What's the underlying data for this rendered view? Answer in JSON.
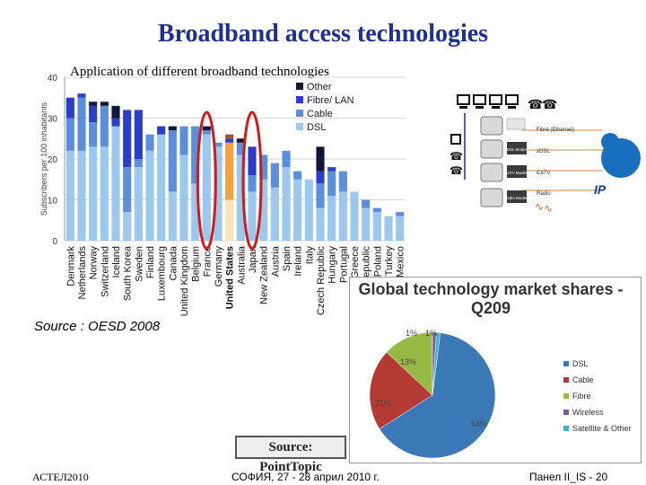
{
  "slide": {
    "title": "Broadband access technologies",
    "subtitle": "Application of different broadband technologies",
    "source": "Source : OESD 2008",
    "footer_left": "АСТЕЛ2010",
    "footer_mid": "СОФИЯ, 27 - 28 април 2010 г.",
    "footer_right": "Панел II_IS - 20",
    "pointtopic": "Source: PointTopic"
  },
  "diagram": {
    "labels": [
      "Fibre (Ethernet)",
      "xDSL",
      "xDSL Modem",
      "CaTV",
      "CaTV Modem",
      "Radio",
      "Radio Modem",
      "IP"
    ]
  },
  "colors": {
    "title": "#1f2f8a",
    "dsl_bar": "#9cc8ee",
    "cable_bar": "#5b8fdc",
    "fibre_bar": "#2a3ec8",
    "other_bar": "#12163a",
    "highlight_orange": "#f7a040",
    "circle": "#d11b1b",
    "pie_dsl": "#3a78b6",
    "pie_cable": "#b53a34",
    "pie_fibre": "#97b843",
    "pie_wireless": "#7a5ba8",
    "pie_satellite": "#3cb0cc"
  },
  "chart_data": [
    {
      "type": "bar",
      "stacked": true,
      "ylabel": "Subscribers per 100 inhabitants",
      "ylim": [
        0,
        40
      ],
      "yticks": [
        0,
        10,
        20,
        30,
        40
      ],
      "categories": [
        "Denmark",
        "Netherlands",
        "Norway",
        "Switzerland",
        "Iceland",
        "South Korea",
        "Sweden",
        "Finland",
        "Luxembourg",
        "Canada",
        "United Kingdom",
        "Belgium",
        "France",
        "Germany",
        "United States",
        "Australia",
        "Japan",
        "New Zealand",
        "Austria",
        "Spain",
        "Ireland",
        "Italy",
        "Czech Republic",
        "Hungary",
        "Portugal",
        "Greece",
        "Republic",
        "Poland",
        "Turkey",
        "Mexico"
      ],
      "highlighted": [
        "France",
        "Japan"
      ],
      "emphasized_category": "United States",
      "legend_position": "top-right",
      "series": [
        {
          "name": "DSL",
          "values": [
            22,
            22,
            23,
            23,
            28,
            7,
            18,
            22,
            26,
            12,
            21,
            14,
            26,
            23,
            10,
            21,
            12,
            15,
            13,
            18,
            15,
            15,
            8,
            11,
            12,
            12,
            8,
            7,
            6,
            6
          ]
        },
        {
          "name": "Cable",
          "values": [
            8,
            13,
            6,
            10,
            0,
            11,
            2,
            4,
            0,
            15,
            7,
            14,
            1,
            1,
            14,
            3,
            4,
            6,
            6,
            4,
            2,
            0,
            6,
            6,
            5,
            0,
            2,
            1,
            0,
            1
          ]
        },
        {
          "name": "Fibre/ LAN",
          "values": [
            5,
            1,
            4,
            0,
            2,
            14,
            12,
            0,
            2,
            0,
            0,
            0,
            0,
            0,
            1,
            0,
            7,
            0,
            0,
            0,
            0,
            0,
            3,
            1,
            0,
            0,
            0,
            0,
            0,
            0
          ]
        },
        {
          "name": "Other",
          "values": [
            0,
            0,
            1,
            1,
            3,
            0,
            0,
            0,
            0,
            1,
            0,
            0,
            1,
            0,
            1,
            1,
            0,
            0,
            0,
            0,
            0,
            0,
            6,
            0,
            0,
            0,
            0,
            0,
            0,
            0
          ]
        }
      ]
    },
    {
      "type": "pie",
      "title": "Global technology market shares - Q209",
      "categories": [
        "DSL",
        "Cable",
        "Fibre",
        "Wireless",
        "Satellite & Other"
      ],
      "values": [
        64,
        21,
        13,
        1,
        1
      ],
      "value_labels": [
        "64%",
        "21%",
        "13%",
        "1%",
        "1%"
      ]
    }
  ]
}
